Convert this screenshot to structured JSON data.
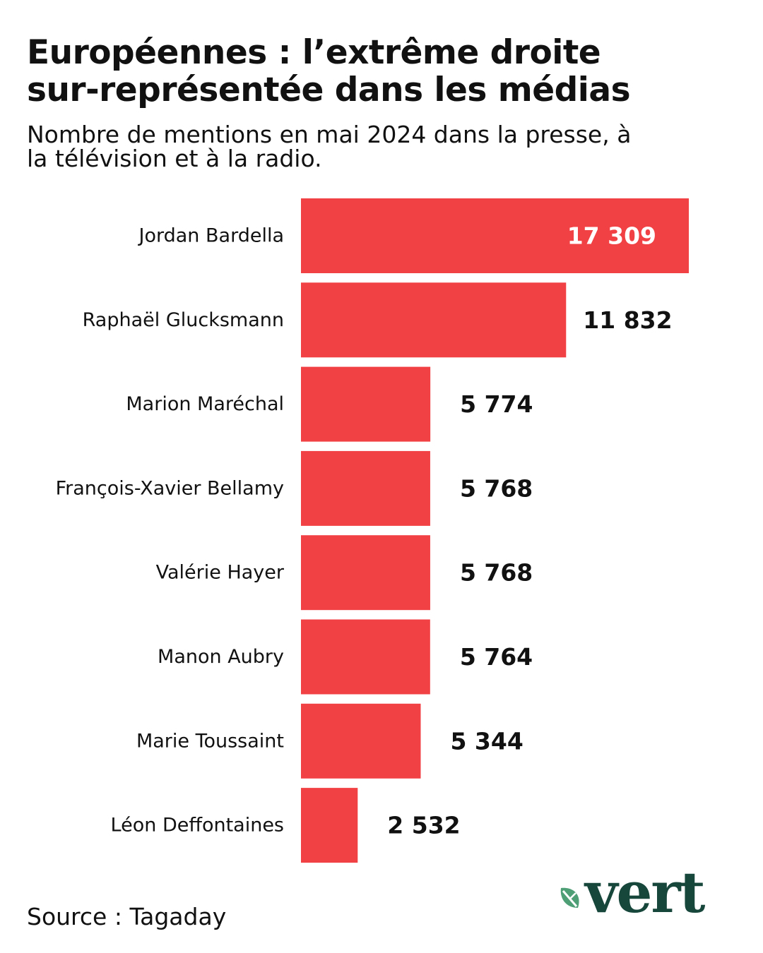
{
  "title_lines": [
    "Européennes : l’extrême droite",
    "sur-représentée dans les médias"
  ],
  "subtitle_lines": [
    "Nombre de mentions en mai 2024 dans la presse, à",
    "la télévision et à la radio."
  ],
  "source": "Source : Tagaday",
  "logo_text": "vert",
  "colors": {
    "bar": "#f24144",
    "label_inside": "#ffffff",
    "label_outside": "#111111",
    "brand": "#17463a",
    "leaf": "#4e9e76"
  },
  "chart_data": {
    "type": "bar",
    "orientation": "horizontal",
    "categories": [
      "Jordan Bardella",
      "Raphaël Glucksmann",
      "Marion Maréchal",
      "François-Xavier Bellamy",
      "Valérie Hayer",
      "Manon Aubry",
      "Marie Toussaint",
      "Léon Deffontaines"
    ],
    "values": [
      17309,
      11832,
      5774,
      5768,
      5768,
      5764,
      5344,
      2532
    ],
    "value_labels": [
      "17 309",
      "11 832",
      "5 774",
      "5 768",
      "5 768",
      "5 764",
      "5 344",
      "2 532"
    ],
    "xlim": [
      0,
      17309
    ],
    "grid": false,
    "legend": "none"
  }
}
